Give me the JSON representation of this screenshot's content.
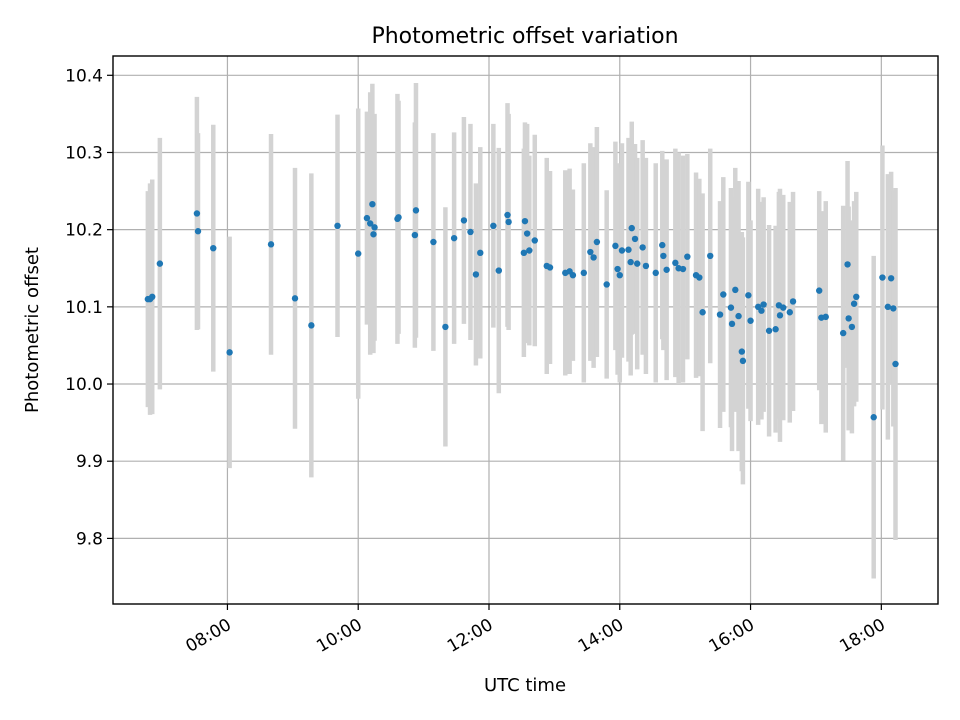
{
  "chart_data": {
    "type": "scatter",
    "title": "Photometric offset variation",
    "xlabel": "UTC time",
    "ylabel": "Photometric offset",
    "xlim": [
      "06:15",
      "18:52"
    ],
    "ylim": [
      9.715,
      10.425
    ],
    "x_ticks": [
      "08:00",
      "10:00",
      "12:00",
      "14:00",
      "16:00",
      "18:00"
    ],
    "y_ticks": [
      "9.8",
      "9.9",
      "10.0",
      "10.1",
      "10.2",
      "10.3",
      "10.4"
    ],
    "grid": true,
    "colors": {
      "points": "#1f77b4",
      "errorbars": "#d3d3d3"
    },
    "points": [
      {
        "t": "06:47",
        "y": 10.11,
        "err": 0.14
      },
      {
        "t": "06:49",
        "y": 10.11,
        "err": 0.15
      },
      {
        "t": "06:51",
        "y": 10.113,
        "err": 0.152
      },
      {
        "t": "06:58",
        "y": 10.156,
        "err": 0.163
      },
      {
        "t": "07:32",
        "y": 10.221,
        "err": 0.151
      },
      {
        "t": "07:33",
        "y": 10.198,
        "err": 0.127
      },
      {
        "t": "07:47",
        "y": 10.176,
        "err": 0.16
      },
      {
        "t": "08:02",
        "y": 10.041,
        "err": 0.15
      },
      {
        "t": "08:40",
        "y": 10.181,
        "err": 0.143
      },
      {
        "t": "09:02",
        "y": 10.111,
        "err": 0.169
      },
      {
        "t": "09:17",
        "y": 10.076,
        "err": 0.197
      },
      {
        "t": "09:41",
        "y": 10.205,
        "err": 0.144
      },
      {
        "t": "10:00",
        "y": 10.169,
        "err": 0.188
      },
      {
        "t": "10:08",
        "y": 10.215,
        "err": 0.138
      },
      {
        "t": "10:11",
        "y": 10.208,
        "err": 0.17
      },
      {
        "t": "10:13",
        "y": 10.233,
        "err": 0.156
      },
      {
        "t": "10:14",
        "y": 10.194,
        "err": 0.154
      },
      {
        "t": "10:15",
        "y": 10.203,
        "err": 0.147
      },
      {
        "t": "10:36",
        "y": 10.214,
        "err": 0.162
      },
      {
        "t": "10:37",
        "y": 10.216,
        "err": 0.151
      },
      {
        "t": "10:52",
        "y": 10.193,
        "err": 0.146
      },
      {
        "t": "10:53",
        "y": 10.225,
        "err": 0.165
      },
      {
        "t": "11:09",
        "y": 10.184,
        "err": 0.141
      },
      {
        "t": "11:20",
        "y": 10.074,
        "err": 0.155
      },
      {
        "t": "11:28",
        "y": 10.189,
        "err": 0.137
      },
      {
        "t": "11:37",
        "y": 10.212,
        "err": 0.134
      },
      {
        "t": "11:43",
        "y": 10.197,
        "err": 0.14
      },
      {
        "t": "11:48",
        "y": 10.142,
        "err": 0.118
      },
      {
        "t": "11:52",
        "y": 10.17,
        "err": 0.137
      },
      {
        "t": "12:04",
        "y": 10.205,
        "err": 0.132
      },
      {
        "t": "12:09",
        "y": 10.147,
        "err": 0.159
      },
      {
        "t": "12:17",
        "y": 10.219,
        "err": 0.145
      },
      {
        "t": "12:18",
        "y": 10.21,
        "err": 0.14
      },
      {
        "t": "12:32",
        "y": 10.17,
        "err": 0.135
      },
      {
        "t": "12:33",
        "y": 10.211,
        "err": 0.128
      },
      {
        "t": "12:35",
        "y": 10.195,
        "err": 0.142
      },
      {
        "t": "12:37",
        "y": 10.173,
        "err": 0.123
      },
      {
        "t": "12:42",
        "y": 10.186,
        "err": 0.137
      },
      {
        "t": "12:53",
        "y": 10.153,
        "err": 0.14
      },
      {
        "t": "12:56",
        "y": 10.151,
        "err": 0.125
      },
      {
        "t": "13:10",
        "y": 10.144,
        "err": 0.133
      },
      {
        "t": "13:14",
        "y": 10.146,
        "err": 0.133
      },
      {
        "t": "13:17",
        "y": 10.141,
        "err": 0.111
      },
      {
        "t": "13:27",
        "y": 10.144,
        "err": 0.142
      },
      {
        "t": "13:33",
        "y": 10.171,
        "err": 0.141
      },
      {
        "t": "13:36",
        "y": 10.164,
        "err": 0.143
      },
      {
        "t": "13:39",
        "y": 10.184,
        "err": 0.149
      },
      {
        "t": "13:48",
        "y": 10.129,
        "err": 0.122
      },
      {
        "t": "13:56",
        "y": 10.179,
        "err": 0.135
      },
      {
        "t": "13:58",
        "y": 10.149,
        "err": 0.137
      },
      {
        "t": "14:00",
        "y": 10.141,
        "err": 0.139
      },
      {
        "t": "14:02",
        "y": 10.173,
        "err": 0.139
      },
      {
        "t": "14:08",
        "y": 10.174,
        "err": 0.145
      },
      {
        "t": "14:10",
        "y": 10.158,
        "err": 0.147
      },
      {
        "t": "14:11",
        "y": 10.202,
        "err": 0.138
      },
      {
        "t": "14:14",
        "y": 10.188,
        "err": 0.123
      },
      {
        "t": "14:16",
        "y": 10.156,
        "err": 0.137
      },
      {
        "t": "14:21",
        "y": 10.177,
        "err": 0.139
      },
      {
        "t": "14:24",
        "y": 10.153,
        "err": 0.14
      },
      {
        "t": "14:33",
        "y": 10.144,
        "err": 0.142
      },
      {
        "t": "14:39",
        "y": 10.18,
        "err": 0.122
      },
      {
        "t": "14:40",
        "y": 10.166,
        "err": 0.122
      },
      {
        "t": "14:43",
        "y": 10.148,
        "err": 0.143
      },
      {
        "t": "14:51",
        "y": 10.157,
        "err": 0.148
      },
      {
        "t": "14:54",
        "y": 10.15,
        "err": 0.15
      },
      {
        "t": "14:58",
        "y": 10.149,
        "err": 0.147
      },
      {
        "t": "15:02",
        "y": 10.165,
        "err": 0.133
      },
      {
        "t": "15:10",
        "y": 10.141,
        "err": 0.133
      },
      {
        "t": "15:13",
        "y": 10.138,
        "err": 0.128
      },
      {
        "t": "15:16",
        "y": 10.093,
        "err": 0.154
      },
      {
        "t": "15:23",
        "y": 10.166,
        "err": 0.139
      },
      {
        "t": "15:32",
        "y": 10.09,
        "err": 0.147
      },
      {
        "t": "15:35",
        "y": 10.116,
        "err": 0.152
      },
      {
        "t": "15:42",
        "y": 10.099,
        "err": 0.155
      },
      {
        "t": "15:43",
        "y": 10.078,
        "err": 0.165
      },
      {
        "t": "15:46",
        "y": 10.122,
        "err": 0.158
      },
      {
        "t": "15:49",
        "y": 10.088,
        "err": 0.175
      },
      {
        "t": "15:52",
        "y": 10.042,
        "err": 0.155
      },
      {
        "t": "15:53",
        "y": 10.03,
        "err": 0.16
      },
      {
        "t": "15:58",
        "y": 10.115,
        "err": 0.147
      },
      {
        "t": "16:00",
        "y": 10.082,
        "err": 0.13
      },
      {
        "t": "16:07",
        "y": 10.1,
        "err": 0.153
      },
      {
        "t": "16:10",
        "y": 10.095,
        "err": 0.141
      },
      {
        "t": "16:12",
        "y": 10.103,
        "err": 0.139
      },
      {
        "t": "16:17",
        "y": 10.069,
        "err": 0.137
      },
      {
        "t": "16:23",
        "y": 10.071,
        "err": 0.134
      },
      {
        "t": "16:26",
        "y": 10.102,
        "err": 0.147
      },
      {
        "t": "16:27",
        "y": 10.089,
        "err": 0.164
      },
      {
        "t": "16:30",
        "y": 10.099,
        "err": 0.146
      },
      {
        "t": "16:36",
        "y": 10.093,
        "err": 0.143
      },
      {
        "t": "16:39",
        "y": 10.107,
        "err": 0.142
      },
      {
        "t": "17:03",
        "y": 10.121,
        "err": 0.129
      },
      {
        "t": "17:05",
        "y": 10.086,
        "err": 0.138
      },
      {
        "t": "17:09",
        "y": 10.087,
        "err": 0.15
      },
      {
        "t": "17:25",
        "y": 10.066,
        "err": 0.165
      },
      {
        "t": "17:29",
        "y": 10.155,
        "err": 0.134
      },
      {
        "t": "17:30",
        "y": 10.085,
        "err": 0.145
      },
      {
        "t": "17:33",
        "y": 10.074,
        "err": 0.138
      },
      {
        "t": "17:35",
        "y": 10.104,
        "err": 0.133
      },
      {
        "t": "17:37",
        "y": 10.113,
        "err": 0.136
      },
      {
        "t": "17:53",
        "y": 9.957,
        "err": 0.209
      },
      {
        "t": "18:01",
        "y": 10.138,
        "err": 0.171
      },
      {
        "t": "18:06",
        "y": 10.1,
        "err": 0.172
      },
      {
        "t": "18:09",
        "y": 10.137,
        "err": 0.138
      },
      {
        "t": "18:11",
        "y": 10.098,
        "err": 0.153
      },
      {
        "t": "18:13",
        "y": 10.026,
        "err": 0.228
      }
    ]
  }
}
